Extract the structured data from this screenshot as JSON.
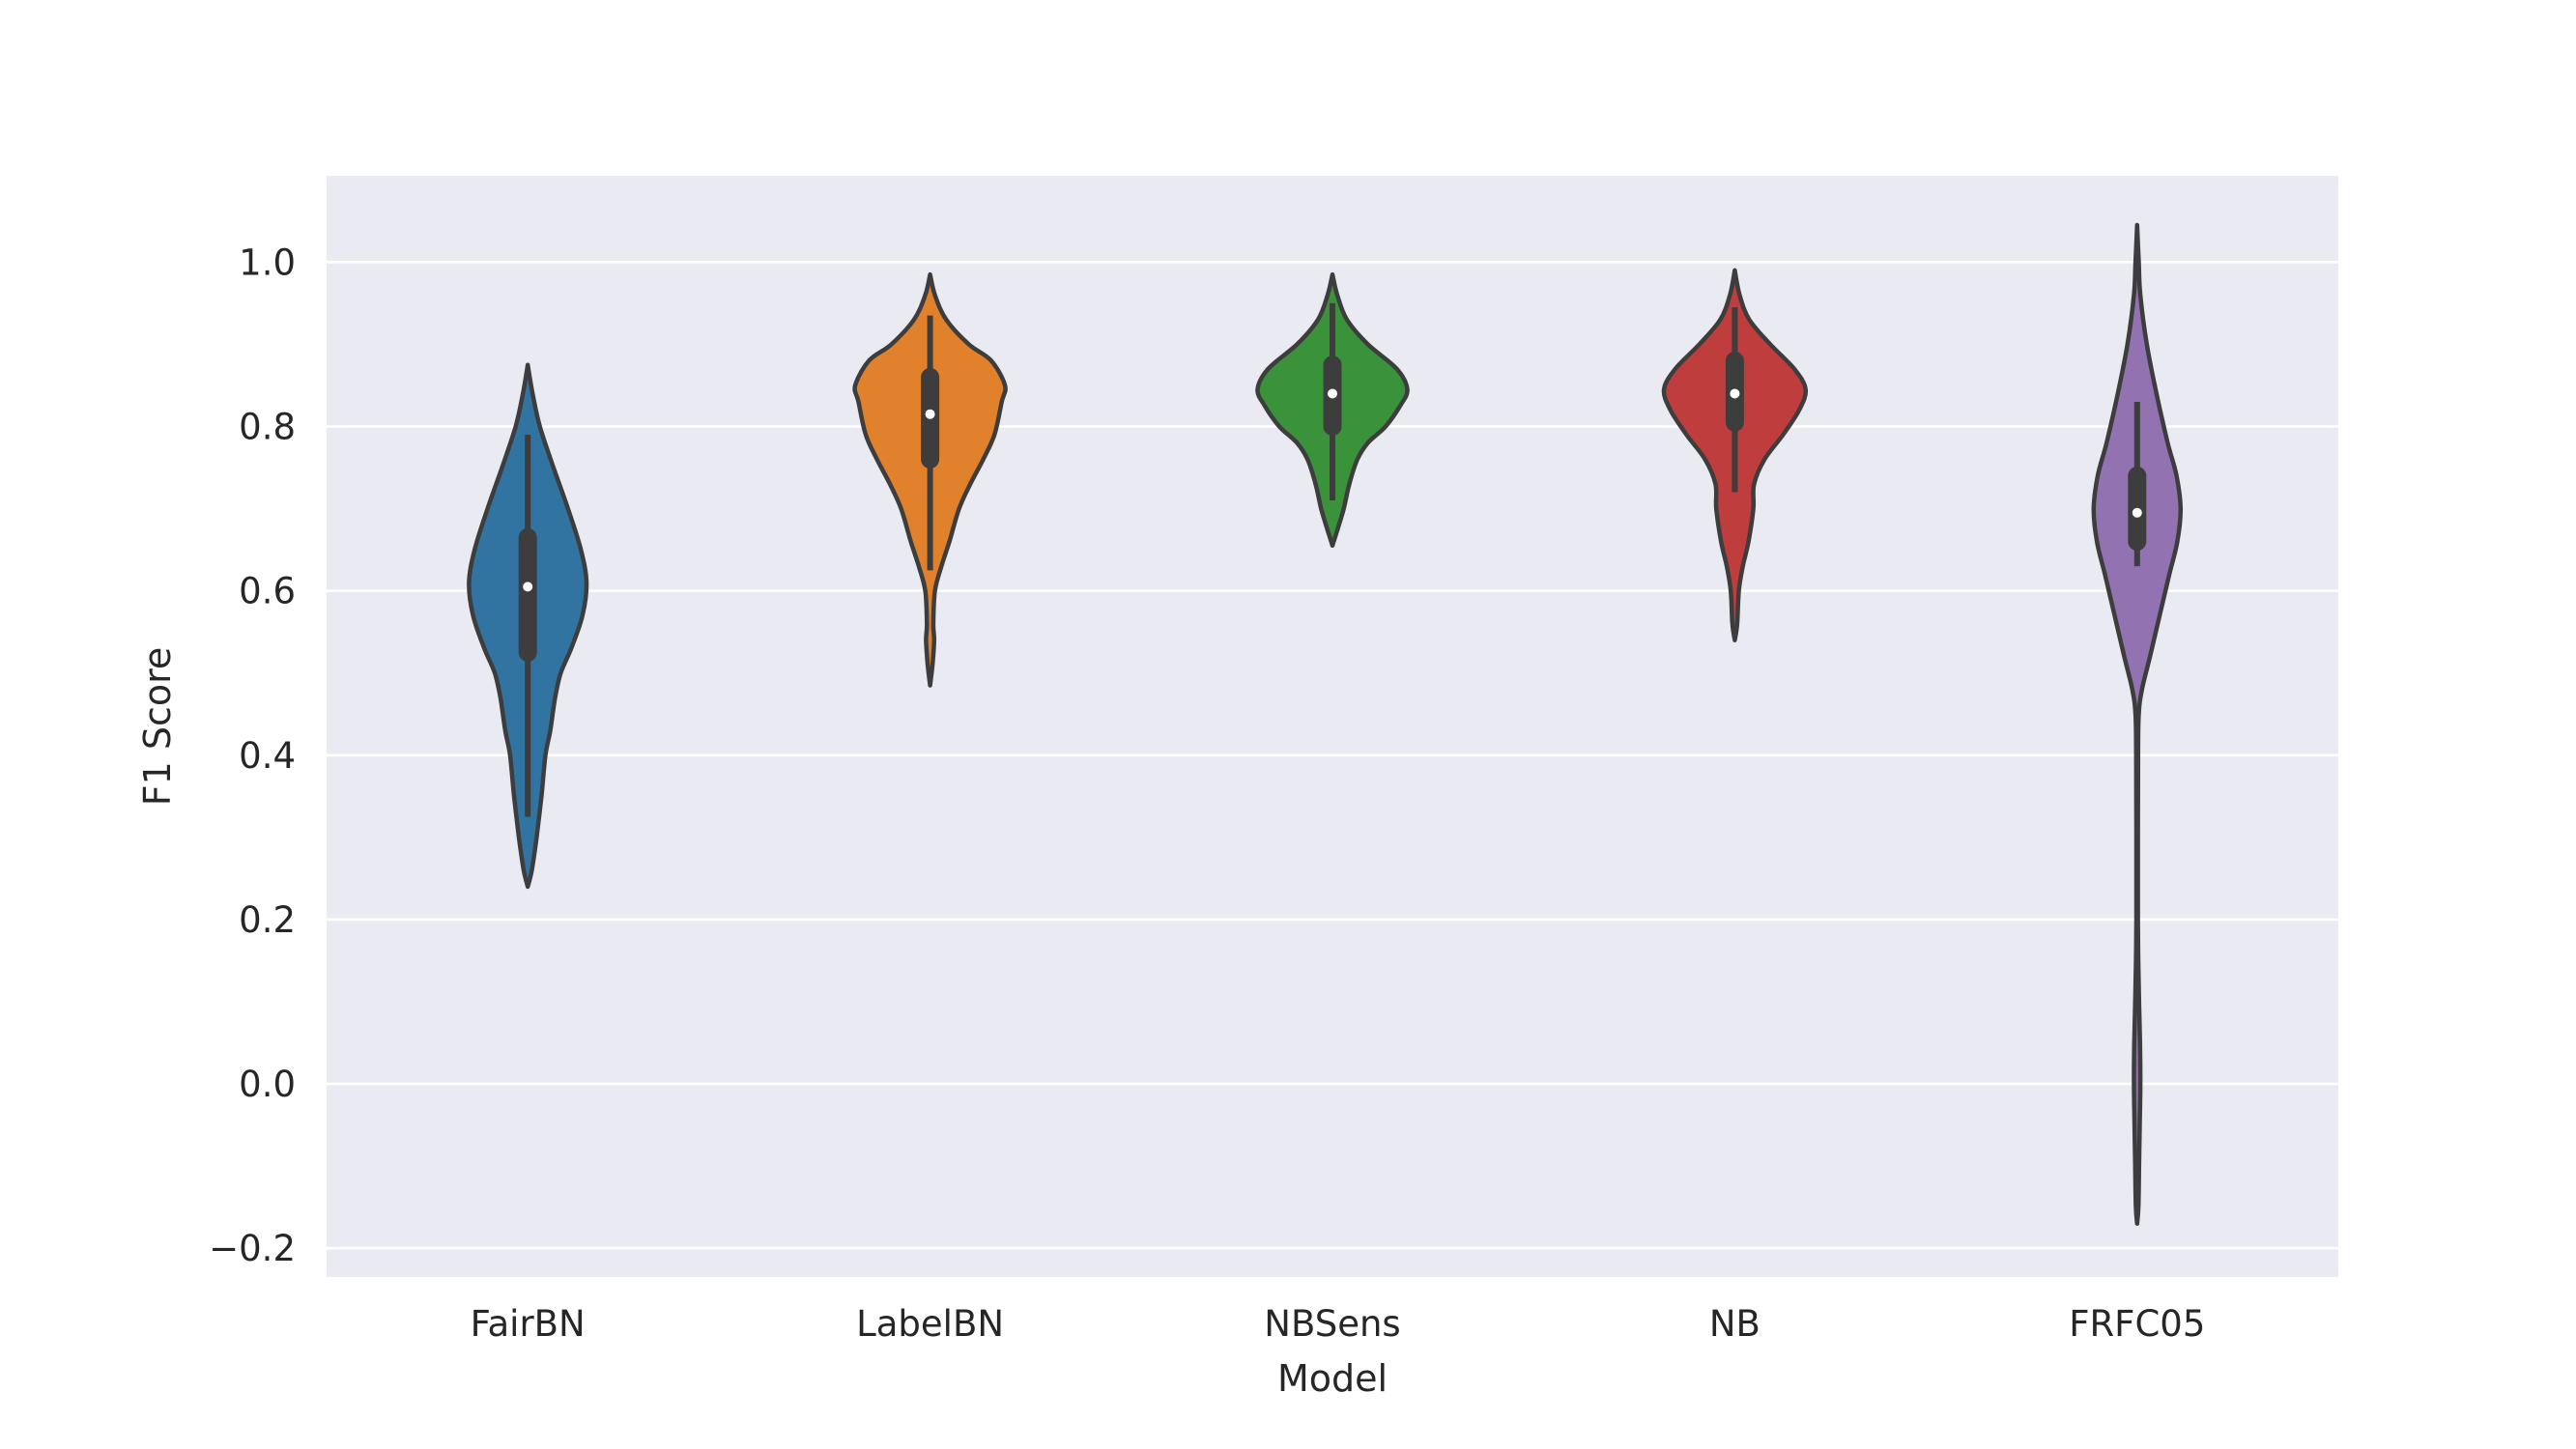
{
  "chart_data": {
    "type": "violin",
    "title": "",
    "xlabel": "Model",
    "ylabel": "F1 Score",
    "ylim": [
      -0.235,
      1.105
    ],
    "yticks": [
      -0.2,
      0.0,
      0.2,
      0.4,
      0.6,
      0.8,
      1.0
    ],
    "ytick_labels": [
      "−0.2",
      "0.0",
      "0.2",
      "0.4",
      "0.6",
      "0.8",
      "1.0"
    ],
    "grid": true,
    "legend": "none",
    "categories": [
      "FairBN",
      "LabelBN",
      "NBSens",
      "NB",
      "FRFC05"
    ],
    "series": [
      {
        "color": "#3274a1",
        "median": 0.605,
        "q1": 0.525,
        "q3": 0.665,
        "whisker_low": 0.325,
        "whisker_high": 0.79,
        "density": [
          [
            0.24,
            0.0
          ],
          [
            0.26,
            0.025
          ],
          [
            0.3,
            0.055
          ],
          [
            0.35,
            0.085
          ],
          [
            0.4,
            0.11
          ],
          [
            0.43,
            0.14
          ],
          [
            0.47,
            0.17
          ],
          [
            0.5,
            0.205
          ],
          [
            0.53,
            0.27
          ],
          [
            0.57,
            0.34
          ],
          [
            0.61,
            0.365
          ],
          [
            0.65,
            0.33
          ],
          [
            0.7,
            0.25
          ],
          [
            0.75,
            0.16
          ],
          [
            0.8,
            0.075
          ],
          [
            0.84,
            0.03
          ],
          [
            0.875,
            0.0
          ]
        ]
      },
      {
        "color": "#e1812c",
        "median": 0.815,
        "q1": 0.76,
        "q3": 0.86,
        "whisker_low": 0.625,
        "whisker_high": 0.935,
        "density": [
          [
            0.485,
            0.0
          ],
          [
            0.51,
            0.015
          ],
          [
            0.54,
            0.025
          ],
          [
            0.56,
            0.02
          ],
          [
            0.6,
            0.03
          ],
          [
            0.63,
            0.07
          ],
          [
            0.66,
            0.12
          ],
          [
            0.7,
            0.18
          ],
          [
            0.73,
            0.25
          ],
          [
            0.76,
            0.33
          ],
          [
            0.79,
            0.4
          ],
          [
            0.83,
            0.445
          ],
          [
            0.85,
            0.465
          ],
          [
            0.88,
            0.38
          ],
          [
            0.9,
            0.24
          ],
          [
            0.93,
            0.1
          ],
          [
            0.96,
            0.03
          ],
          [
            0.985,
            0.0
          ]
        ]
      },
      {
        "color": "#3a923a",
        "median": 0.84,
        "q1": 0.8,
        "q3": 0.875,
        "whisker_low": 0.71,
        "whisker_high": 0.95,
        "density": [
          [
            0.655,
            0.0
          ],
          [
            0.68,
            0.04
          ],
          [
            0.7,
            0.07
          ],
          [
            0.73,
            0.105
          ],
          [
            0.76,
            0.155
          ],
          [
            0.78,
            0.22
          ],
          [
            0.8,
            0.33
          ],
          [
            0.825,
            0.42
          ],
          [
            0.845,
            0.465
          ],
          [
            0.87,
            0.4
          ],
          [
            0.9,
            0.22
          ],
          [
            0.93,
            0.09
          ],
          [
            0.96,
            0.03
          ],
          [
            0.985,
            0.0
          ]
        ]
      },
      {
        "color": "#c03d3e",
        "median": 0.84,
        "q1": 0.805,
        "q3": 0.88,
        "whisker_low": 0.72,
        "whisker_high": 0.945,
        "density": [
          [
            0.54,
            0.0
          ],
          [
            0.56,
            0.015
          ],
          [
            0.6,
            0.025
          ],
          [
            0.63,
            0.05
          ],
          [
            0.66,
            0.085
          ],
          [
            0.7,
            0.115
          ],
          [
            0.73,
            0.12
          ],
          [
            0.76,
            0.185
          ],
          [
            0.79,
            0.3
          ],
          [
            0.82,
            0.4
          ],
          [
            0.845,
            0.44
          ],
          [
            0.87,
            0.37
          ],
          [
            0.9,
            0.22
          ],
          [
            0.93,
            0.09
          ],
          [
            0.96,
            0.03
          ],
          [
            0.99,
            0.0
          ]
        ]
      },
      {
        "color": "#9372b2",
        "median": 0.695,
        "q1": 0.66,
        "q3": 0.74,
        "whisker_low": 0.63,
        "whisker_high": 0.83,
        "density": [
          [
            -0.17,
            0.0
          ],
          [
            -0.15,
            0.008
          ],
          [
            -0.1,
            0.012
          ],
          [
            -0.05,
            0.016
          ],
          [
            0.0,
            0.02
          ],
          [
            0.05,
            0.018
          ],
          [
            0.1,
            0.012
          ],
          [
            0.15,
            0.007
          ],
          [
            0.2,
            0.005
          ],
          [
            0.3,
            0.005
          ],
          [
            0.4,
            0.006
          ],
          [
            0.45,
            0.01
          ],
          [
            0.48,
            0.03
          ],
          [
            0.52,
            0.08
          ],
          [
            0.57,
            0.14
          ],
          [
            0.62,
            0.2
          ],
          [
            0.66,
            0.25
          ],
          [
            0.7,
            0.27
          ],
          [
            0.74,
            0.245
          ],
          [
            0.78,
            0.19
          ],
          [
            0.84,
            0.12
          ],
          [
            0.9,
            0.06
          ],
          [
            0.96,
            0.02
          ],
          [
            1.0,
            0.01
          ],
          [
            1.045,
            0.0
          ]
        ]
      }
    ]
  }
}
